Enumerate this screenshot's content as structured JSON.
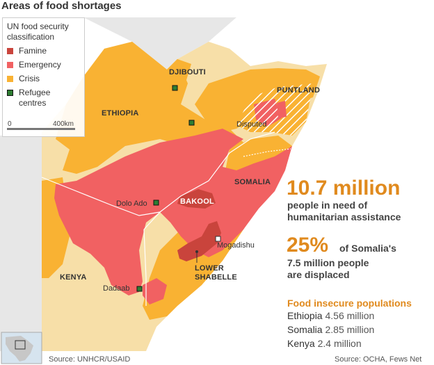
{
  "title": "Areas of food shortages",
  "legend": {
    "heading": "UN food security classification",
    "items": [
      {
        "label": "Famine",
        "color": "#c9443c"
      },
      {
        "label": "Emergency",
        "color": "#f16162"
      },
      {
        "label": "Crisis",
        "color": "#f9b233"
      },
      {
        "label": "Refugee centres",
        "color": "#2e7d32"
      }
    ],
    "scale_start": "0",
    "scale_end": "400km"
  },
  "map_labels": {
    "djibouti": "DJIBOUTI",
    "ethiopia": "ETHIOPIA",
    "puntland": "PUNTLAND",
    "disputed": "Disputed",
    "somalia": "SOMALIA",
    "bakool": "BAKOOL",
    "dolo_ado": "Dolo Ado",
    "mogadishu": "Mogadishu",
    "lower_shabelle": "LOWER SHABELLE",
    "kenya": "KENYA",
    "dadaab": "Dadaab"
  },
  "stats": {
    "need_number": "10.7 million",
    "need_text": "people in need of humanitarian assistance",
    "displaced_pct": "25%",
    "displaced_text_1": "of Somalia's",
    "displaced_text_2": "7.5 million people are displaced"
  },
  "food_insecure": {
    "title": "Food insecure populations",
    "rows": [
      {
        "country": "Ethiopia",
        "value": "4.56 million"
      },
      {
        "country": "Somalia",
        "value": "2.85 million"
      },
      {
        "country": "Kenya",
        "value": "2.4 million"
      }
    ]
  },
  "sources": {
    "left": "Source: UNHCR/USAID",
    "right": "Source: OCHA, Fews Net"
  },
  "colors": {
    "famine": "#c9443c",
    "emergency": "#f16162",
    "crisis": "#f9b233",
    "land": "#f7dfa8",
    "neighbour": "#e7e7e7",
    "accent": "#e08a1e"
  }
}
